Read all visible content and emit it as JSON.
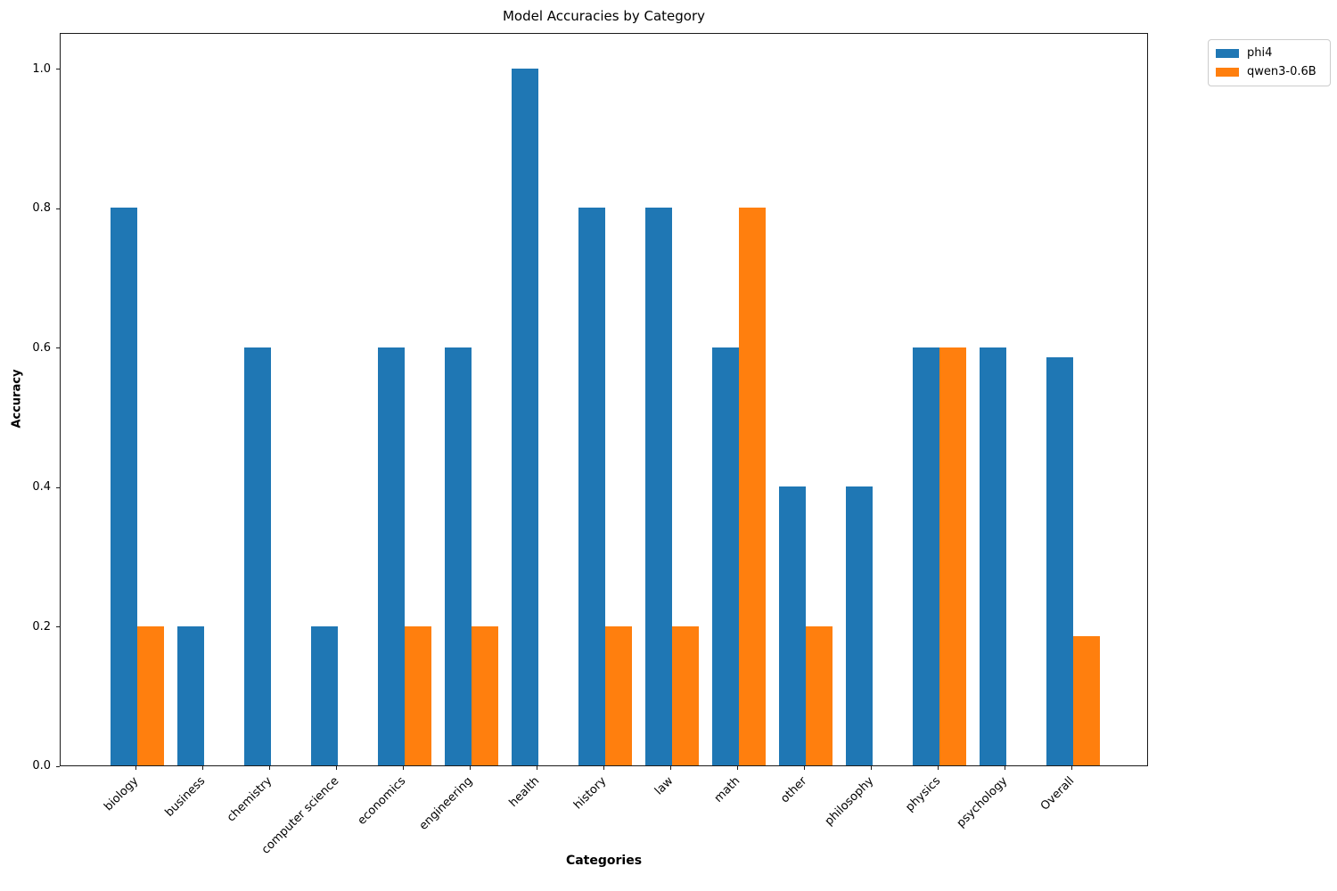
{
  "chart_data": {
    "type": "bar",
    "title": "Model Accuracies by Category",
    "xlabel": "Categories",
    "ylabel": "Accuracy",
    "categories": [
      "biology",
      "business",
      "chemistry",
      "computer science",
      "economics",
      "engineering",
      "health",
      "history",
      "law",
      "math",
      "other",
      "philosophy",
      "physics",
      "psychology",
      "Overall"
    ],
    "series": [
      {
        "name": "phi4",
        "color": "#1f77b4",
        "values": [
          0.8,
          0.2,
          0.6,
          0.2,
          0.6,
          0.6,
          1.0,
          0.8,
          0.8,
          0.6,
          0.4,
          0.4,
          0.6,
          0.6,
          0.586
        ]
      },
      {
        "name": "qwen3-0.6B",
        "color": "#ff7f0e",
        "values": [
          0.2,
          0.0,
          0.0,
          0.0,
          0.2,
          0.2,
          0.0,
          0.2,
          0.2,
          0.8,
          0.2,
          0.0,
          0.6,
          0.0,
          0.186
        ]
      }
    ],
    "ylim": [
      0,
      1.052
    ],
    "yticks": [
      "0.0",
      "0.2",
      "0.4",
      "0.6",
      "0.8",
      "1.0"
    ],
    "grid": false,
    "legend_position": "upper-right-outside",
    "bar_width_units": 0.4,
    "x_margin_fraction": 0.05,
    "tick_label_rotation_deg": 45,
    "spine_color": "#1a1a1a"
  }
}
